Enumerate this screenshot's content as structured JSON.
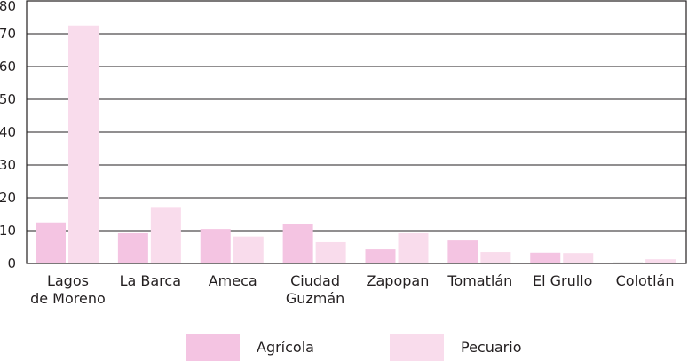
{
  "chart_data": {
    "type": "bar",
    "categories": [
      [
        "Lagos",
        "de Moreno"
      ],
      [
        "La Barca"
      ],
      [
        "Ameca"
      ],
      [
        "Ciudad",
        "Guzmán"
      ],
      [
        "Zapopan"
      ],
      [
        "Tomatlán"
      ],
      [
        "El Grullo"
      ],
      [
        "Colotlán"
      ]
    ],
    "series": [
      {
        "name": "Agrícola",
        "color": "#f4c4e2",
        "values": [
          12.5,
          9.2,
          10.5,
          12.0,
          4.3,
          7.0,
          3.3,
          0.3
        ]
      },
      {
        "name": "Pecuario",
        "color": "#f9dcec",
        "values": [
          72.5,
          17.2,
          8.2,
          6.5,
          9.2,
          3.5,
          3.2,
          1.3
        ]
      }
    ],
    "ylim": [
      0,
      80
    ],
    "yticks": [
      "0",
      "10",
      "20",
      "30",
      "40",
      "50",
      "60",
      "70",
      "80"
    ],
    "grid": true,
    "legend_position": "bottom"
  }
}
